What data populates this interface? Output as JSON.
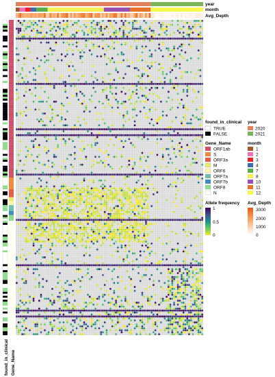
{
  "chart_data": {
    "type": "heatmap",
    "title": "",
    "n_rows": 160,
    "n_cols": 100,
    "column_annotations": {
      "year": {
        "label": "year",
        "counts": {
          "2020": 72,
          "2021": 28
        }
      },
      "month": {
        "label": "month",
        "runs": [
          [
            "1",
            2
          ],
          [
            "2",
            3
          ],
          [
            "3",
            3
          ],
          [
            "4",
            3
          ],
          [
            "7",
            6
          ],
          [
            "8",
            30
          ],
          [
            "10",
            14
          ],
          [
            "11",
            11
          ],
          [
            "12",
            28
          ]
        ]
      },
      "avg_depth": {
        "label": "Avg_Depth",
        "range": [
          0,
          3000
        ]
      }
    },
    "row_annotations": {
      "found_in_clinical": {
        "label": "found_in_clinical",
        "true_fraction": 0.35
      },
      "gene_name": {
        "label": "Gene_Name",
        "runs": [
          [
            "ORF1ab",
            80
          ],
          [
            "S",
            6
          ],
          [
            "ORF3a",
            4
          ],
          [
            "M",
            2
          ],
          [
            "ORF6",
            2
          ],
          [
            "ORF7a",
            3
          ],
          [
            "ORF7b",
            2
          ],
          [
            "ORF8",
            3
          ],
          [
            "N",
            58
          ]
        ]
      }
    },
    "allele_frequency_scale": {
      "min": 0,
      "max": 1,
      "ticks": [
        "1",
        "0.5",
        "0"
      ]
    },
    "missing_color": "#d9d9d9"
  },
  "legends": {
    "found_in_clinical": {
      "title": "found_in_clinical",
      "items": [
        {
          "label": "TRUE",
          "color": "#ffffff"
        },
        {
          "label": "FALSE",
          "color": "#000000"
        }
      ]
    },
    "year": {
      "title": "year",
      "items": [
        {
          "label": "2020",
          "color": "#e4815d"
        },
        {
          "label": "2021",
          "color": "#7cb45c"
        }
      ]
    },
    "gene_name": {
      "title": "Gene_Name",
      "items": [
        {
          "label": "ORF1ab",
          "color": "#d0506a"
        },
        {
          "label": "S",
          "color": "#ee8a3a"
        },
        {
          "label": "ORF3a",
          "color": "#e85a48"
        },
        {
          "label": "M",
          "color": "#ece86a"
        },
        {
          "label": "ORF6",
          "color": "#fff8a8"
        },
        {
          "label": "ORF7a",
          "color": "#70c0b0"
        },
        {
          "label": "ORF7b",
          "color": "#3a8ac0"
        },
        {
          "label": "ORF8",
          "color": "#8fdc90"
        },
        {
          "label": "N",
          "color": "#fffff0"
        }
      ]
    },
    "month": {
      "title": "month",
      "items": [
        {
          "label": "1",
          "color": "#9e5a2a"
        },
        {
          "label": "2",
          "color": "#f070b8"
        },
        {
          "label": "3",
          "color": "#e8202a"
        },
        {
          "label": "4",
          "color": "#3a6ab0"
        },
        {
          "label": "7",
          "color": "#58b04a"
        },
        {
          "label": "8",
          "color": "#f4f050"
        },
        {
          "label": "10",
          "color": "#9a50b0"
        },
        {
          "label": "11",
          "color": "#e8742a"
        },
        {
          "label": "12",
          "color": "#f8f850"
        }
      ]
    },
    "allele_frequency": {
      "title": "Allele frequency",
      "ticks": [
        "1",
        "0.5",
        "0"
      ],
      "colors": [
        "#440154",
        "#3b528b",
        "#21918c",
        "#5ec962",
        "#fde725"
      ]
    },
    "avg_depth": {
      "title": "Avg_Depth",
      "ticks": [
        "3000",
        "2000",
        "1000",
        "0"
      ],
      "colors": [
        "#e65a10",
        "#f59a55",
        "#fbd2b0",
        "#ffffff"
      ]
    }
  },
  "labels": {
    "year": "year",
    "month": "month",
    "avg_depth": "Avg_Depth",
    "found_in_clinical": "found_in_clinical",
    "gene_name": "Gene_Name"
  }
}
